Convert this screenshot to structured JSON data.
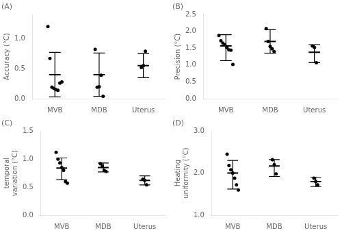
{
  "chart_data": [
    {
      "type": "strip",
      "title": "(A)",
      "ylabel": "Accuracy (°C)",
      "categories": [
        "MVB",
        "MDB",
        "Uterus"
      ],
      "values": [
        [
          1.2,
          0.67,
          0.19,
          0.17,
          0.15,
          0.14,
          0.26,
          0.28
        ],
        [
          0.82,
          0.19,
          0.2,
          0.39,
          0.04
        ],
        [
          0.52,
          0.55,
          0.79
        ]
      ],
      "mean": [
        0.4,
        0.4,
        0.55
      ],
      "sd_low": [
        0.03,
        0.04,
        0.35
      ],
      "sd_high": [
        0.77,
        0.76,
        0.75
      ],
      "ylim": [
        0.0,
        1.4
      ],
      "yticks": [
        {
          "value": 0.0,
          "label": "0.0"
        },
        0.5,
        {
          "value": 1.0,
          "label": "1.0"
        }
      ],
      "color": "#000000",
      "grid": false
    },
    {
      "type": "strip",
      "title": "(B)",
      "ylabel": "Precision (°C)",
      "categories": [
        "MVB",
        "MDB",
        "Uterus"
      ],
      "values": [
        [
          1.88,
          1.72,
          1.65,
          1.6,
          1.52,
          1.45,
          1.44,
          1.02
        ],
        [
          2.08,
          1.7,
          1.55,
          1.48,
          1.4
        ],
        [
          1.57,
          1.52,
          1.07
        ]
      ],
      "mean": [
        1.57,
        1.7,
        1.38
      ],
      "sd_low": [
        1.13,
        1.35,
        1.07
      ],
      "sd_high": [
        1.9,
        2.05,
        1.6
      ],
      "ylim": [
        0.0,
        2.5
      ],
      "yticks": [
        {
          "value": 0.0,
          "label": "0.0"
        },
        0.5,
        {
          "value": 1.0,
          "label": "1.0"
        },
        1.5,
        {
          "value": 2.0,
          "label": "2.0"
        },
        2.5
      ],
      "color": "#000000",
      "grid": false
    },
    {
      "type": "strip",
      "title": "(C)",
      "ylabel": "temporal\nvariation (°C)",
      "categories": [
        "MVB",
        "MDB",
        "Uterus"
      ],
      "values": [
        [
          1.12,
          1.0,
          0.93,
          0.85,
          0.8,
          0.6,
          0.57
        ],
        [
          0.92,
          0.88,
          0.8,
          0.78
        ],
        [
          0.64,
          0.62,
          0.54
        ]
      ],
      "mean": [
        0.84,
        0.85,
        0.62
      ],
      "sd_low": [
        0.63,
        0.77,
        0.54
      ],
      "sd_high": [
        1.02,
        0.93,
        0.7
      ],
      "ylim": [
        0.0,
        1.5
      ],
      "yticks": [
        {
          "value": 0.0,
          "label": "0.0"
        },
        0.5,
        {
          "value": 1.0,
          "label": "1.0"
        },
        1.5
      ],
      "color": "#000000",
      "grid": false
    },
    {
      "type": "strip",
      "title": "(D)",
      "ylabel": "Heating\nuniformity (°C)",
      "categories": [
        "MVB",
        "MDB",
        "Uterus"
      ],
      "values": [
        [
          2.45,
          2.18,
          2.08,
          2.0,
          1.88,
          1.72,
          1.6
        ],
        [
          2.32,
          2.2,
          1.98
        ],
        [
          1.88,
          1.8,
          1.72
        ]
      ],
      "mean": [
        2.0,
        2.17,
        1.8
      ],
      "sd_low": [
        1.62,
        1.92,
        1.68
      ],
      "sd_high": [
        2.3,
        2.32,
        1.9
      ],
      "ylim": [
        1.0,
        3.0
      ],
      "yticks": [
        {
          "value": 1.0,
          "label": "1.0"
        },
        {
          "value": 2.0,
          "label": "2.0"
        },
        {
          "value": 3.0,
          "label": "3.0"
        }
      ],
      "color": "#000000",
      "grid": false
    }
  ]
}
